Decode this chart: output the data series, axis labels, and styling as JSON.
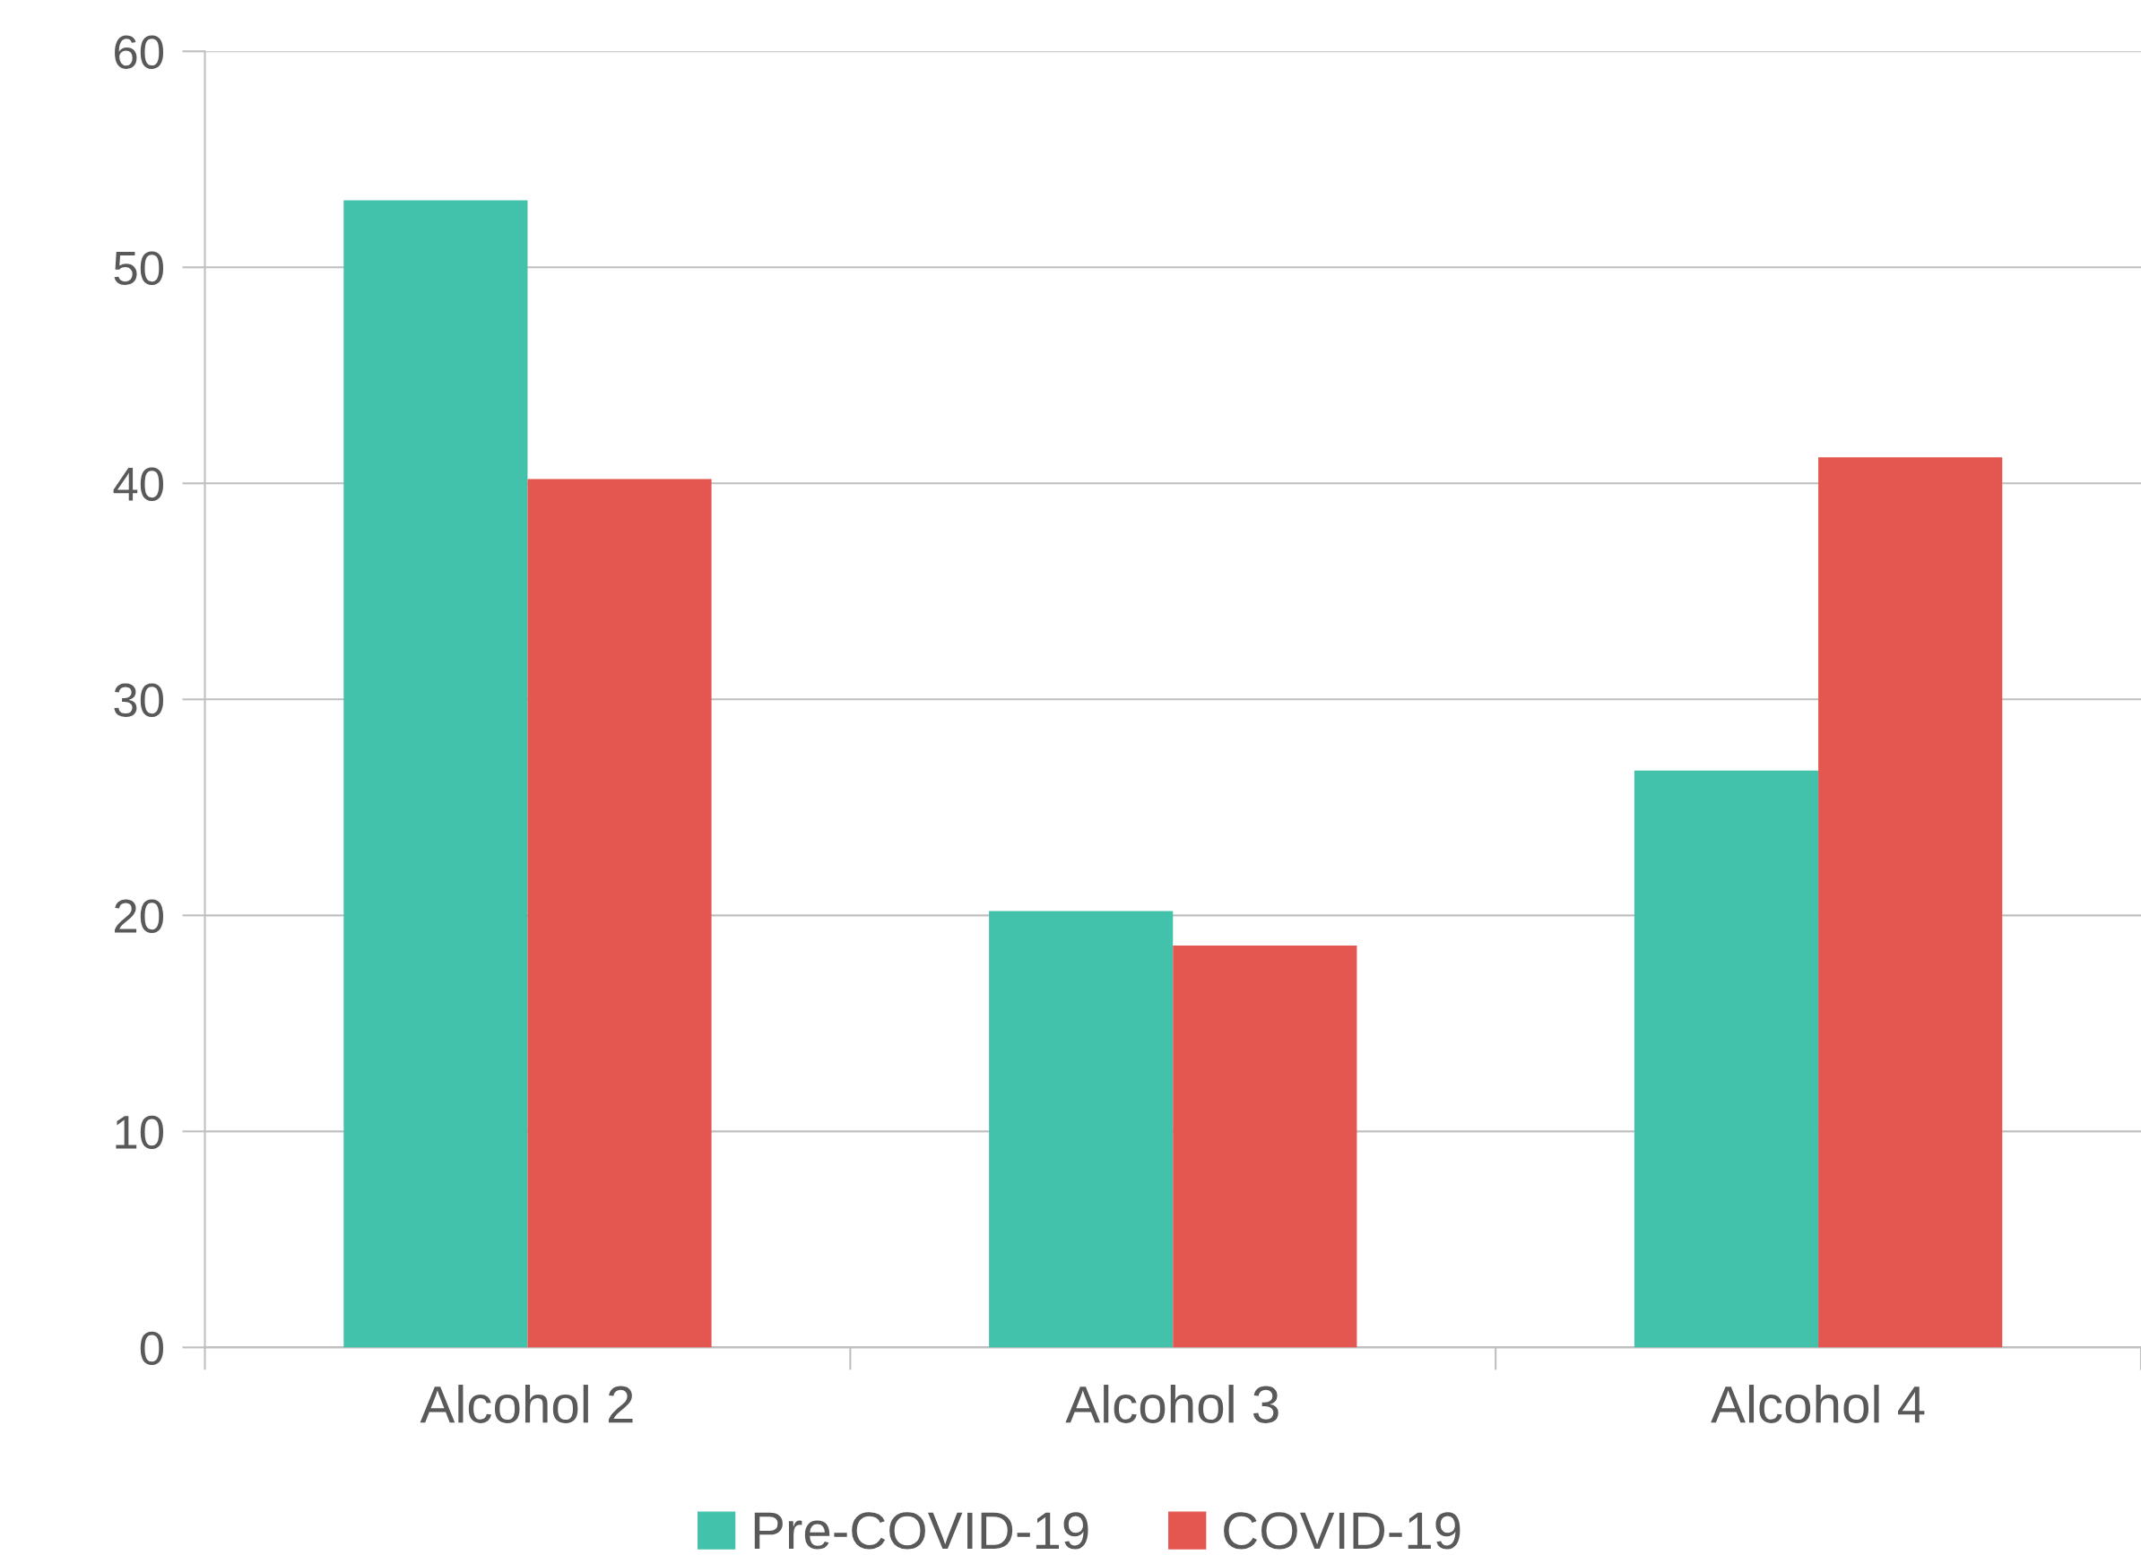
{
  "chart_data": {
    "type": "bar",
    "categories": [
      "Alcohol 2",
      "Alcohol 3",
      "Alcohol 4"
    ],
    "series": [
      {
        "name": "Pre-COVID-19",
        "color": "#42c2ab",
        "values": [
          53.1,
          20.2,
          26.7
        ]
      },
      {
        "name": "COVID-19",
        "color": "#e45650",
        "values": [
          40.2,
          18.6,
          41.2
        ]
      }
    ],
    "ylim": [
      0,
      60
    ],
    "yticks": [
      0,
      10,
      20,
      30,
      40,
      50,
      60
    ],
    "grid": "y",
    "legend": "bottom"
  }
}
